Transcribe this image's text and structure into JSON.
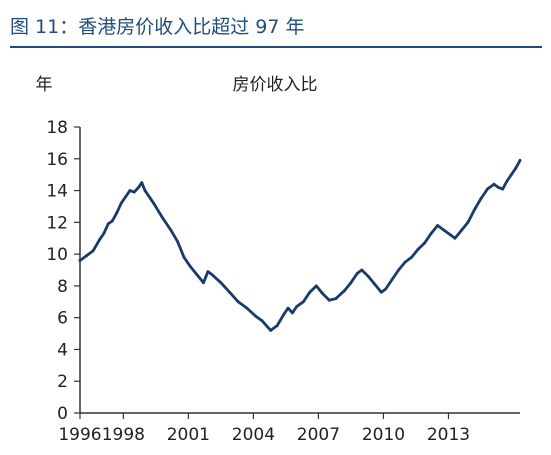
{
  "figure_title": "图 11：香港房价收入比超过 97 年",
  "chart_data": {
    "type": "line",
    "title": "房价收入比",
    "ylabel": "年",
    "xlabel": "",
    "x_axis_type": "time",
    "xlim": [
      1996.0,
      2016.3
    ],
    "ylim": [
      0,
      18
    ],
    "x_ticks": [
      1996,
      1998,
      2001,
      2004,
      2007,
      2010,
      2013
    ],
    "y_ticks": [
      0,
      2,
      4,
      6,
      8,
      10,
      12,
      14,
      16,
      18
    ],
    "grid": false,
    "legend": "none",
    "series": [
      {
        "name": "",
        "color": "#1a3a6b",
        "points": [
          [
            1996.0,
            9.6
          ],
          [
            1996.3,
            9.9
          ],
          [
            1996.6,
            10.2
          ],
          [
            1996.9,
            10.9
          ],
          [
            1997.1,
            11.3
          ],
          [
            1997.3,
            11.9
          ],
          [
            1997.5,
            12.1
          ],
          [
            1997.7,
            12.6
          ],
          [
            1997.9,
            13.2
          ],
          [
            1998.1,
            13.6
          ],
          [
            1998.3,
            14.0
          ],
          [
            1998.5,
            13.9
          ],
          [
            1998.7,
            14.2
          ],
          [
            1998.85,
            14.5
          ],
          [
            1999.0,
            14.0
          ],
          [
            1999.4,
            13.2
          ],
          [
            1999.8,
            12.3
          ],
          [
            2000.2,
            11.5
          ],
          [
            2000.5,
            10.8
          ],
          [
            2000.8,
            9.8
          ],
          [
            2001.1,
            9.2
          ],
          [
            2001.4,
            8.7
          ],
          [
            2001.7,
            8.2
          ],
          [
            2001.9,
            8.9
          ],
          [
            2002.1,
            8.7
          ],
          [
            2002.5,
            8.2
          ],
          [
            2002.9,
            7.6
          ],
          [
            2003.3,
            7.0
          ],
          [
            2003.7,
            6.6
          ],
          [
            2004.1,
            6.1
          ],
          [
            2004.4,
            5.8
          ],
          [
            2004.8,
            5.2
          ],
          [
            2005.1,
            5.5
          ],
          [
            2005.4,
            6.2
          ],
          [
            2005.6,
            6.6
          ],
          [
            2005.8,
            6.3
          ],
          [
            2006.0,
            6.7
          ],
          [
            2006.3,
            7.0
          ],
          [
            2006.6,
            7.6
          ],
          [
            2006.9,
            8.0
          ],
          [
            2007.2,
            7.5
          ],
          [
            2007.5,
            7.1
          ],
          [
            2007.8,
            7.2
          ],
          [
            2008.2,
            7.7
          ],
          [
            2008.5,
            8.2
          ],
          [
            2008.8,
            8.8
          ],
          [
            2009.0,
            9.0
          ],
          [
            2009.3,
            8.6
          ],
          [
            2009.6,
            8.1
          ],
          [
            2009.9,
            7.6
          ],
          [
            2010.1,
            7.8
          ],
          [
            2010.4,
            8.4
          ],
          [
            2010.7,
            9.0
          ],
          [
            2011.0,
            9.5
          ],
          [
            2011.3,
            9.8
          ],
          [
            2011.6,
            10.3
          ],
          [
            2011.9,
            10.7
          ],
          [
            2012.2,
            11.3
          ],
          [
            2012.5,
            11.8
          ],
          [
            2012.8,
            11.5
          ],
          [
            2013.1,
            11.2
          ],
          [
            2013.3,
            11.0
          ],
          [
            2013.6,
            11.5
          ],
          [
            2013.9,
            12.0
          ],
          [
            2014.2,
            12.8
          ],
          [
            2014.5,
            13.5
          ],
          [
            2014.8,
            14.1
          ],
          [
            2015.1,
            14.4
          ],
          [
            2015.3,
            14.2
          ],
          [
            2015.5,
            14.1
          ],
          [
            2015.7,
            14.6
          ],
          [
            2015.9,
            15.0
          ],
          [
            2016.1,
            15.4
          ],
          [
            2016.3,
            15.9
          ]
        ]
      }
    ]
  }
}
